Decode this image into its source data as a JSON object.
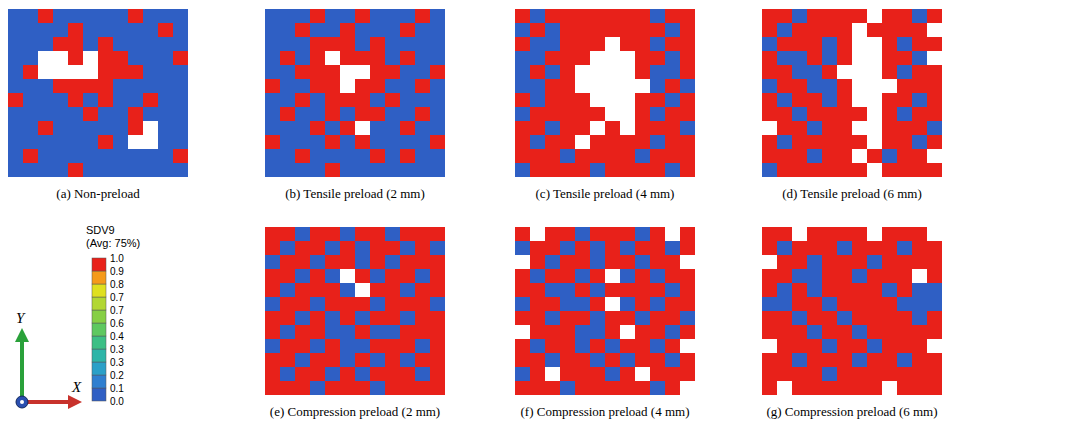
{
  "chart_data": {
    "type": "heatmap",
    "tick_labels": false,
    "panels": [
      {
        "caption": "(a) Non-preload",
        "cells": [
          [
            0,
            0,
            1,
            0,
            0,
            0,
            0,
            0,
            1,
            0,
            0,
            0
          ],
          [
            0,
            0,
            0,
            0,
            1,
            0,
            0,
            0,
            0,
            0,
            1,
            0
          ],
          [
            0,
            0,
            0,
            1,
            1,
            0,
            1,
            0,
            0,
            0,
            0,
            0
          ],
          [
            0,
            0,
            null,
            null,
            1,
            null,
            1,
            1,
            0,
            0,
            0,
            1
          ],
          [
            0,
            1,
            null,
            null,
            null,
            null,
            1,
            1,
            1,
            0,
            0,
            0
          ],
          [
            0,
            0,
            0,
            1,
            1,
            1,
            1,
            0,
            0,
            0,
            0,
            0
          ],
          [
            1,
            0,
            0,
            0,
            1,
            0,
            1,
            0,
            0,
            1,
            0,
            0
          ],
          [
            0,
            0,
            0,
            0,
            0,
            1,
            0,
            0,
            1,
            0,
            0,
            0
          ],
          [
            0,
            0,
            1,
            0,
            0,
            0,
            0,
            0,
            1,
            null,
            0,
            0
          ],
          [
            0,
            0,
            0,
            0,
            0,
            0,
            1,
            0,
            null,
            null,
            0,
            0
          ],
          [
            0,
            1,
            0,
            0,
            0,
            0,
            0,
            0,
            0,
            0,
            0,
            1
          ],
          [
            0,
            0,
            0,
            0,
            1,
            0,
            0,
            0,
            0,
            0,
            0,
            0
          ]
        ]
      },
      {
        "caption": "(b) Tensile preload (2 mm)",
        "cells": [
          [
            0,
            0,
            0,
            1,
            0,
            0,
            1,
            0,
            0,
            0,
            1,
            0
          ],
          [
            0,
            0,
            1,
            0,
            0,
            1,
            0,
            0,
            0,
            1,
            0,
            0
          ],
          [
            0,
            0,
            0,
            1,
            1,
            1,
            0,
            1,
            0,
            0,
            0,
            0
          ],
          [
            0,
            1,
            0,
            1,
            null,
            1,
            1,
            1,
            0,
            1,
            0,
            0
          ],
          [
            0,
            0,
            1,
            1,
            1,
            null,
            null,
            1,
            1,
            0,
            0,
            1
          ],
          [
            1,
            0,
            0,
            1,
            1,
            null,
            1,
            1,
            0,
            0,
            1,
            0
          ],
          [
            0,
            0,
            1,
            0,
            1,
            1,
            1,
            0,
            1,
            0,
            0,
            0
          ],
          [
            0,
            1,
            0,
            0,
            1,
            0,
            1,
            1,
            0,
            0,
            1,
            0
          ],
          [
            0,
            0,
            0,
            1,
            0,
            1,
            null,
            0,
            0,
            1,
            0,
            0
          ],
          [
            1,
            0,
            0,
            0,
            1,
            0,
            1,
            0,
            0,
            0,
            0,
            1
          ],
          [
            0,
            0,
            1,
            0,
            0,
            0,
            0,
            1,
            0,
            1,
            0,
            0
          ],
          [
            0,
            0,
            0,
            0,
            1,
            0,
            0,
            0,
            0,
            0,
            0,
            0
          ]
        ]
      },
      {
        "caption": "(c) Tensile preload (4 mm)",
        "cells": [
          [
            1,
            0,
            1,
            1,
            1,
            1,
            1,
            1,
            1,
            0,
            1,
            1
          ],
          [
            0,
            1,
            0,
            1,
            1,
            1,
            1,
            1,
            1,
            1,
            0,
            1
          ],
          [
            1,
            0,
            0,
            1,
            1,
            1,
            null,
            1,
            1,
            0,
            1,
            1
          ],
          [
            0,
            0,
            1,
            1,
            1,
            null,
            null,
            null,
            1,
            1,
            0,
            1
          ],
          [
            0,
            1,
            0,
            1,
            null,
            null,
            null,
            null,
            1,
            0,
            0,
            1
          ],
          [
            0,
            0,
            1,
            1,
            null,
            null,
            null,
            null,
            null,
            0,
            1,
            0
          ],
          [
            1,
            0,
            1,
            1,
            1,
            null,
            null,
            null,
            1,
            1,
            0,
            1
          ],
          [
            0,
            1,
            1,
            1,
            1,
            1,
            null,
            null,
            1,
            0,
            1,
            1
          ],
          [
            1,
            1,
            0,
            1,
            1,
            null,
            1,
            null,
            1,
            1,
            1,
            0
          ],
          [
            1,
            0,
            1,
            1,
            null,
            1,
            1,
            1,
            1,
            0,
            1,
            1
          ],
          [
            1,
            1,
            1,
            0,
            1,
            1,
            1,
            1,
            0,
            1,
            1,
            1
          ],
          [
            0,
            1,
            1,
            1,
            1,
            0,
            1,
            1,
            1,
            1,
            0,
            1
          ]
        ]
      },
      {
        "caption": "(d) Tensile preload (6 mm)",
        "cells": [
          [
            1,
            1,
            0,
            1,
            1,
            1,
            1,
            null,
            1,
            1,
            0,
            1
          ],
          [
            1,
            0,
            1,
            1,
            1,
            1,
            null,
            1,
            1,
            1,
            1,
            null
          ],
          [
            0,
            1,
            1,
            1,
            0,
            1,
            null,
            null,
            1,
            0,
            1,
            1
          ],
          [
            1,
            0,
            0,
            1,
            0,
            1,
            null,
            null,
            1,
            1,
            0,
            null
          ],
          [
            1,
            1,
            0,
            0,
            1,
            null,
            null,
            null,
            1,
            0,
            1,
            1
          ],
          [
            0,
            1,
            1,
            0,
            0,
            1,
            null,
            null,
            null,
            1,
            1,
            1
          ],
          [
            1,
            0,
            1,
            1,
            0,
            1,
            null,
            null,
            1,
            1,
            0,
            1
          ],
          [
            1,
            1,
            0,
            1,
            1,
            1,
            1,
            null,
            1,
            0,
            1,
            1
          ],
          [
            null,
            1,
            1,
            0,
            1,
            1,
            null,
            null,
            1,
            1,
            1,
            0
          ],
          [
            1,
            0,
            1,
            1,
            1,
            1,
            1,
            null,
            1,
            1,
            0,
            1
          ],
          [
            1,
            1,
            1,
            0,
            1,
            1,
            null,
            1,
            0,
            1,
            1,
            null
          ],
          [
            0,
            1,
            1,
            1,
            1,
            1,
            1,
            null,
            1,
            1,
            1,
            1
          ]
        ]
      },
      {
        "caption": "(e) Compression preload (2 mm)",
        "cells": [
          [
            1,
            1,
            0,
            1,
            1,
            0,
            1,
            1,
            0,
            1,
            1,
            1
          ],
          [
            1,
            0,
            1,
            1,
            0,
            1,
            0,
            1,
            1,
            0,
            1,
            0
          ],
          [
            0,
            1,
            1,
            0,
            1,
            1,
            0,
            1,
            0,
            1,
            1,
            1
          ],
          [
            1,
            1,
            0,
            1,
            0,
            null,
            1,
            0,
            1,
            1,
            0,
            1
          ],
          [
            1,
            0,
            1,
            1,
            1,
            0,
            null,
            1,
            1,
            0,
            1,
            1
          ],
          [
            0,
            1,
            1,
            0,
            1,
            1,
            1,
            0,
            1,
            1,
            1,
            0
          ],
          [
            1,
            1,
            0,
            1,
            0,
            1,
            0,
            1,
            1,
            0,
            1,
            1
          ],
          [
            1,
            0,
            1,
            1,
            0,
            0,
            1,
            0,
            0,
            1,
            1,
            1
          ],
          [
            0,
            1,
            1,
            0,
            1,
            0,
            0,
            1,
            1,
            1,
            0,
            1
          ],
          [
            1,
            1,
            0,
            1,
            1,
            0,
            1,
            0,
            1,
            0,
            1,
            1
          ],
          [
            1,
            0,
            1,
            1,
            0,
            1,
            0,
            1,
            1,
            1,
            0,
            1
          ],
          [
            1,
            1,
            1,
            0,
            1,
            1,
            1,
            0,
            1,
            1,
            1,
            1
          ]
        ]
      },
      {
        "caption": "(f) Compression preload (4 mm)",
        "cells": [
          [
            1,
            null,
            1,
            1,
            0,
            1,
            1,
            1,
            0,
            1,
            null,
            1
          ],
          [
            0,
            1,
            1,
            0,
            1,
            0,
            1,
            0,
            1,
            1,
            0,
            1
          ],
          [
            null,
            1,
            0,
            1,
            1,
            0,
            1,
            1,
            0,
            1,
            1,
            null
          ],
          [
            1,
            0,
            1,
            1,
            0,
            1,
            null,
            0,
            1,
            0,
            1,
            1
          ],
          [
            1,
            1,
            0,
            0,
            1,
            0,
            1,
            1,
            1,
            1,
            0,
            1
          ],
          [
            0,
            1,
            1,
            0,
            0,
            1,
            null,
            0,
            1,
            0,
            1,
            1
          ],
          [
            1,
            1,
            0,
            1,
            1,
            0,
            1,
            1,
            0,
            1,
            1,
            0
          ],
          [
            null,
            1,
            1,
            1,
            0,
            0,
            1,
            null,
            1,
            1,
            0,
            1
          ],
          [
            1,
            0,
            1,
            1,
            0,
            1,
            0,
            1,
            1,
            0,
            1,
            null
          ],
          [
            1,
            1,
            0,
            1,
            1,
            0,
            1,
            0,
            1,
            1,
            0,
            1
          ],
          [
            0,
            1,
            null,
            1,
            1,
            1,
            0,
            1,
            null,
            1,
            1,
            1
          ],
          [
            1,
            1,
            1,
            0,
            1,
            1,
            1,
            1,
            1,
            0,
            1,
            null
          ]
        ]
      },
      {
        "caption": "(g) Compression preload (6 mm)",
        "cells": [
          [
            1,
            1,
            null,
            1,
            1,
            1,
            1,
            null,
            1,
            1,
            1,
            null
          ],
          [
            1,
            0,
            1,
            1,
            1,
            0,
            1,
            1,
            1,
            0,
            1,
            1
          ],
          [
            null,
            1,
            1,
            0,
            1,
            1,
            1,
            0,
            1,
            1,
            1,
            1
          ],
          [
            1,
            1,
            0,
            0,
            1,
            1,
            0,
            1,
            1,
            1,
            null,
            1
          ],
          [
            1,
            0,
            1,
            0,
            1,
            1,
            1,
            1,
            0,
            1,
            0,
            0
          ],
          [
            0,
            0,
            1,
            1,
            0,
            1,
            1,
            1,
            1,
            0,
            0,
            0
          ],
          [
            1,
            1,
            0,
            1,
            1,
            0,
            1,
            1,
            1,
            1,
            0,
            1
          ],
          [
            1,
            1,
            1,
            0,
            1,
            1,
            0,
            1,
            1,
            1,
            1,
            1
          ],
          [
            null,
            1,
            1,
            1,
            0,
            1,
            1,
            0,
            1,
            1,
            1,
            null
          ],
          [
            1,
            1,
            0,
            1,
            1,
            1,
            0,
            1,
            1,
            0,
            1,
            1
          ],
          [
            1,
            1,
            1,
            1,
            0,
            1,
            1,
            1,
            1,
            1,
            1,
            1
          ],
          [
            1,
            null,
            1,
            1,
            1,
            1,
            1,
            1,
            null,
            1,
            1,
            1
          ]
        ]
      }
    ],
    "colorbar": {
      "title": "SDV9",
      "subtitle": "(Avg: 75%)",
      "ticks": [
        {
          "value": 0,
          "label": "0.0"
        },
        0.1,
        0.2,
        {
          "value": 0.27,
          "label": "0.3"
        },
        {
          "value": 0.33,
          "label": "0.3"
        },
        0.4,
        0.6,
        {
          "value": 0.67,
          "label": "0.7"
        },
        {
          "value": 0.73,
          "label": "0.7"
        },
        0.8,
        0.9,
        {
          "value": 1,
          "label": "1.0"
        }
      ],
      "colors": [
        "#2f5fc4",
        "#2f7fd0",
        "#2aa0c8",
        "#2db5a8",
        "#3cbf85",
        "#5ec860",
        "#86cf45",
        "#b2d733",
        "#dfe01f",
        "#f59a1a",
        "#e8211a"
      ]
    },
    "axes_triad": {
      "y": "Y",
      "x": "X"
    }
  }
}
